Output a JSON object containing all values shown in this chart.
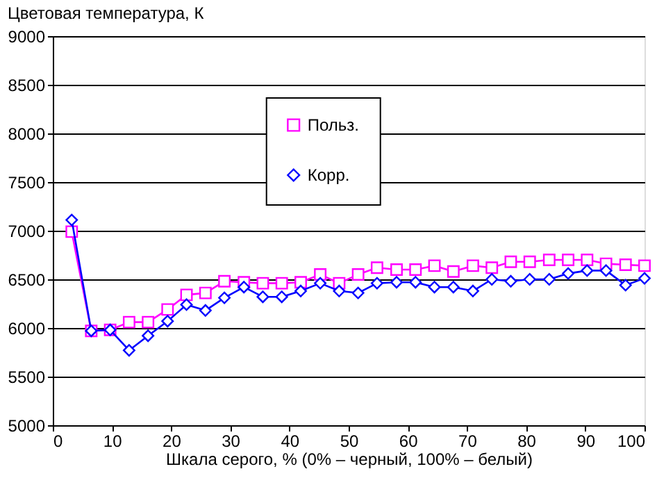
{
  "chart_data": {
    "type": "line",
    "ylabel": "Цветовая температура, К",
    "xlabel": "Шкала серого, % (0% – черный, 100% – белый)",
    "x": [
      3.2,
      6.5,
      9.7,
      12.9,
      16.1,
      19.4,
      22.6,
      25.8,
      29.0,
      32.3,
      35.5,
      38.7,
      41.9,
      45.2,
      48.4,
      51.6,
      54.8,
      58.1,
      61.3,
      64.5,
      67.7,
      71.0,
      74.2,
      77.4,
      80.6,
      83.9,
      87.1,
      90.3,
      93.5,
      96.8,
      100
    ],
    "series": [
      {
        "name": "Польз.",
        "color": "#ff00ff",
        "marker": "square",
        "values": [
          6990,
          5970,
          5980,
          6060,
          6060,
          6190,
          6340,
          6360,
          6480,
          6470,
          6460,
          6460,
          6470,
          6550,
          6460,
          6550,
          6620,
          6600,
          6600,
          6640,
          6580,
          6640,
          6620,
          6680,
          6680,
          6700,
          6700,
          6700,
          6660,
          6650,
          6640
        ]
      },
      {
        "name": "Корр.",
        "color": "#0000ff",
        "marker": "diamond",
        "values": [
          7110,
          5970,
          5980,
          5770,
          5920,
          6070,
          6240,
          6180,
          6310,
          6420,
          6320,
          6320,
          6380,
          6460,
          6380,
          6360,
          6460,
          6470,
          6470,
          6420,
          6420,
          6380,
          6500,
          6480,
          6500,
          6500,
          6560,
          6590,
          6590,
          6440,
          6510
        ]
      }
    ],
    "xlim": [
      0,
      100
    ],
    "xticks": [
      0,
      10,
      20,
      30,
      40,
      50,
      60,
      70,
      80,
      90,
      100
    ],
    "ylim": [
      5000,
      9000
    ],
    "yticks": [
      5000,
      5500,
      6000,
      6500,
      7000,
      7500,
      8000,
      8500,
      9000
    ],
    "grid": "y",
    "legend": "top"
  }
}
